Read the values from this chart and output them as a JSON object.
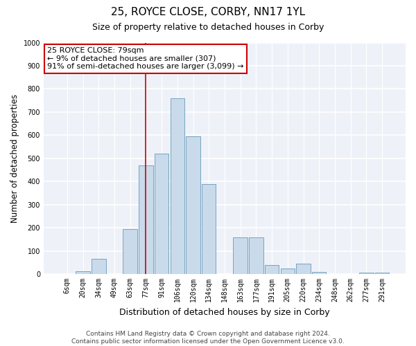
{
  "title": "25, ROYCE CLOSE, CORBY, NN17 1YL",
  "subtitle": "Size of property relative to detached houses in Corby",
  "xlabel": "Distribution of detached houses by size in Corby",
  "ylabel": "Number of detached properties",
  "bar_labels": [
    "6sqm",
    "20sqm",
    "34sqm",
    "49sqm",
    "63sqm",
    "77sqm",
    "91sqm",
    "106sqm",
    "120sqm",
    "134sqm",
    "148sqm",
    "163sqm",
    "177sqm",
    "191sqm",
    "205sqm",
    "220sqm",
    "234sqm",
    "248sqm",
    "262sqm",
    "277sqm",
    "291sqm"
  ],
  "bar_values": [
    0,
    12,
    65,
    0,
    195,
    470,
    520,
    760,
    595,
    390,
    0,
    160,
    160,
    40,
    25,
    45,
    10,
    0,
    0,
    5,
    5
  ],
  "bar_color": "#c9daea",
  "bar_edge_color": "#6699bb",
  "vline_x_idx": 5,
  "vline_color": "#cc0000",
  "annotation_title": "25 ROYCE CLOSE: 79sqm",
  "annotation_line1": "← 9% of detached houses are smaller (307)",
  "annotation_line2": "91% of semi-detached houses are larger (3,099) →",
  "annotation_box_facecolor": "#ffffff",
  "annotation_box_edgecolor": "#cc0000",
  "ylim": [
    0,
    1000
  ],
  "yticks": [
    0,
    100,
    200,
    300,
    400,
    500,
    600,
    700,
    800,
    900,
    1000
  ],
  "footnote": "Contains HM Land Registry data © Crown copyright and database right 2024.\nContains public sector information licensed under the Open Government Licence v3.0.",
  "bg_color": "#ffffff",
  "plot_bg_color": "#eef2f8",
  "title_fontsize": 11,
  "subtitle_fontsize": 9,
  "xlabel_fontsize": 9,
  "ylabel_fontsize": 8.5,
  "tick_fontsize": 7,
  "annotation_fontsize": 8,
  "footnote_fontsize": 6.5
}
